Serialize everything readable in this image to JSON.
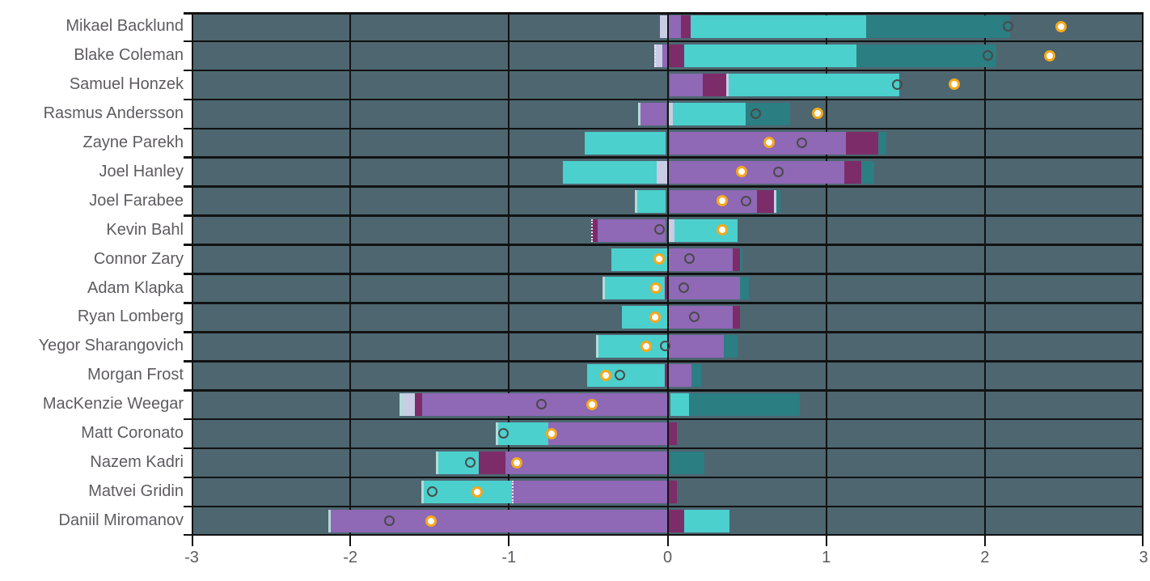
{
  "chart_data": {
    "type": "bar",
    "orientation": "horizontal-stacked",
    "title": "",
    "xlabel": "",
    "ylabel": "",
    "grid": true,
    "legend": "none",
    "x_axis": {
      "min": -3,
      "max": 3,
      "ticks": [
        -3,
        -2,
        -1,
        0,
        1,
        2,
        3
      ],
      "tick_labels": [
        "-3",
        "-2",
        "-1",
        "0",
        "1",
        "2",
        "3"
      ]
    },
    "colors": {
      "plot_background": "#4d6670",
      "gridline": "#121212",
      "label_text": "#5e5b60",
      "cyan": "#4bd0cd",
      "teal": "#2b7e82",
      "purple": "#8f68b6",
      "magenta": "#7d2c6a",
      "lavender": "#c9cce4",
      "ice": "#b7d9d8",
      "open_circle_stroke": "#4a4a4a",
      "filled_circle_ring": "#f6a81c",
      "filled_circle_fill": "#ffffff"
    },
    "marker_legend": {
      "open_circle": "open-gray-circle-marker",
      "filled_circle": "yellow-ring-white-circle-marker"
    },
    "rows": [
      {
        "name": "Mikael Backlund",
        "segments": [
          {
            "c": "lavender",
            "from": -0.05,
            "to": 0
          },
          {
            "c": "purple",
            "from": 0,
            "to": 0.085
          },
          {
            "c": "magenta",
            "from": 0.085,
            "to": 0.145
          },
          {
            "c": "cyan",
            "from": 0.145,
            "to": 1.25
          },
          {
            "c": "teal",
            "from": 1.25,
            "to": 2.16
          }
        ],
        "open_circle": 2.15,
        "filled_circle": 2.48
      },
      {
        "name": "Blake Coleman",
        "segments": [
          {
            "c": "lavender",
            "from": -0.085,
            "to": -0.035,
            "dashed": true
          },
          {
            "c": "purple",
            "from": -0.035,
            "to": 0
          },
          {
            "c": "magenta",
            "from": 0,
            "to": 0.105
          },
          {
            "c": "cyan",
            "from": 0.105,
            "to": 1.19
          },
          {
            "c": "teal",
            "from": 1.19,
            "to": 2.07
          }
        ],
        "open_circle": 2.02,
        "filled_circle": 2.41
      },
      {
        "name": "Samuel Honzek",
        "segments": [
          {
            "c": "purple",
            "from": 0.015,
            "to": 0.22
          },
          {
            "c": "magenta",
            "from": 0.22,
            "to": 0.37
          },
          {
            "c": "lavender",
            "from": 0.37,
            "to": 0.385
          },
          {
            "c": "cyan",
            "from": 0.385,
            "to": 1.46
          }
        ],
        "open_circle": 1.45,
        "filled_circle": 1.81
      },
      {
        "name": "Rasmus Andersson",
        "segments": [
          {
            "c": "ice",
            "from": -0.185,
            "to": -0.17
          },
          {
            "c": "purple",
            "from": -0.17,
            "to": -0.01
          },
          {
            "c": "lavender",
            "from": 0.01,
            "to": 0.035
          },
          {
            "c": "cyan",
            "from": 0.035,
            "to": 0.49
          },
          {
            "c": "teal",
            "from": 0.49,
            "to": 0.77
          }
        ],
        "open_circle": 0.56,
        "filled_circle": 0.95
      },
      {
        "name": "Zayne Parekh",
        "segments": [
          {
            "c": "cyan",
            "from": -0.52,
            "to": -0.015
          },
          {
            "c": "purple",
            "from": 0.015,
            "to": 1.125
          },
          {
            "c": "magenta",
            "from": 1.125,
            "to": 1.33
          },
          {
            "c": "teal",
            "from": 1.33,
            "to": 1.38
          }
        ],
        "open_circle": 0.85,
        "filled_circle": 0.64
      },
      {
        "name": "Joel Hanley",
        "segments": [
          {
            "c": "cyan",
            "from": -0.66,
            "to": -0.07
          },
          {
            "c": "lavender",
            "from": -0.07,
            "to": 0
          },
          {
            "c": "purple",
            "from": 0.01,
            "to": 1.115
          },
          {
            "c": "magenta",
            "from": 1.115,
            "to": 1.22
          },
          {
            "c": "teal",
            "from": 1.22,
            "to": 1.3
          }
        ],
        "open_circle": 0.7,
        "filled_circle": 0.47
      },
      {
        "name": "Joel Farabee",
        "segments": [
          {
            "c": "ice",
            "from": -0.205,
            "to": -0.19
          },
          {
            "c": "cyan",
            "from": -0.19,
            "to": -0.015
          },
          {
            "c": "purple",
            "from": 0.015,
            "to": 0.565
          },
          {
            "c": "magenta",
            "from": 0.565,
            "to": 0.67
          },
          {
            "c": "lavender",
            "from": 0.67,
            "to": 0.685
          },
          {
            "c": "teal",
            "from": 0.685,
            "to": 0.71
          }
        ],
        "open_circle": 0.495,
        "filled_circle": 0.345
      },
      {
        "name": "Kevin Bahl",
        "segments": [
          {
            "c": "magenta",
            "from": -0.48,
            "to": -0.44,
            "dashed": true
          },
          {
            "c": "purple",
            "from": -0.44,
            "to": -0.015
          },
          {
            "c": "lavender",
            "from": 0.005,
            "to": 0.045
          },
          {
            "c": "cyan",
            "from": 0.045,
            "to": 0.44
          }
        ],
        "open_circle": -0.05,
        "filled_circle": 0.345
      },
      {
        "name": "Connor Zary",
        "segments": [
          {
            "c": "cyan",
            "from": -0.355,
            "to": -0.005
          },
          {
            "c": "purple",
            "from": 0.01,
            "to": 0.41
          },
          {
            "c": "magenta",
            "from": 0.41,
            "to": 0.455
          },
          {
            "c": "teal",
            "from": 0.455,
            "to": 0.47
          }
        ],
        "open_circle": 0.14,
        "filled_circle": -0.05
      },
      {
        "name": "Adam Klapka",
        "segments": [
          {
            "c": "ice",
            "from": -0.41,
            "to": -0.395
          },
          {
            "c": "cyan",
            "from": -0.395,
            "to": -0.02
          },
          {
            "c": "magenta",
            "from": -0.02,
            "to": 0
          },
          {
            "c": "purple",
            "from": 0,
            "to": 0.455
          },
          {
            "c": "teal",
            "from": 0.455,
            "to": 0.51
          }
        ],
        "open_circle": 0.105,
        "filled_circle": -0.07
      },
      {
        "name": "Ryan Lomberg",
        "segments": [
          {
            "c": "cyan",
            "from": -0.29,
            "to": -0.005
          },
          {
            "c": "purple",
            "from": 0.01,
            "to": 0.41
          },
          {
            "c": "magenta",
            "from": 0.41,
            "to": 0.455
          }
        ],
        "open_circle": 0.17,
        "filled_circle": -0.075
      },
      {
        "name": "Yegor Sharangovich",
        "segments": [
          {
            "c": "ice",
            "from": -0.45,
            "to": -0.435
          },
          {
            "c": "cyan",
            "from": -0.435,
            "to": -0.005
          },
          {
            "c": "purple",
            "from": 0.01,
            "to": 0.355
          },
          {
            "c": "teal",
            "from": 0.355,
            "to": 0.44
          }
        ],
        "open_circle": -0.01,
        "filled_circle": -0.135
      },
      {
        "name": "Morgan Frost",
        "segments": [
          {
            "c": "cyan",
            "from": -0.505,
            "to": -0.02
          },
          {
            "c": "magenta",
            "from": -0.02,
            "to": 0
          },
          {
            "c": "purple",
            "from": 0.005,
            "to": 0.15
          },
          {
            "c": "teal",
            "from": 0.15,
            "to": 0.21
          }
        ],
        "open_circle": -0.3,
        "filled_circle": -0.39
      },
      {
        "name": "MacKenzie Weegar",
        "segments": [
          {
            "c": "ice",
            "from": -1.69,
            "to": -1.665
          },
          {
            "c": "lavender",
            "from": -1.665,
            "to": -1.595
          },
          {
            "c": "magenta",
            "from": -1.595,
            "to": -1.545
          },
          {
            "c": "purple",
            "from": -1.545,
            "to": -0.005
          },
          {
            "c": "cyan",
            "from": 0.02,
            "to": 0.135
          },
          {
            "c": "teal",
            "from": 0.135,
            "to": 0.835
          }
        ],
        "open_circle": -0.79,
        "filled_circle": -0.475
      },
      {
        "name": "Matt Coronato",
        "segments": [
          {
            "c": "ice",
            "from": -1.085,
            "to": -1.07
          },
          {
            "c": "cyan",
            "from": -1.07,
            "to": -0.75
          },
          {
            "c": "purple",
            "from": -0.75,
            "to": 0.005
          },
          {
            "c": "magenta",
            "from": 0.01,
            "to": 0.06
          }
        ],
        "open_circle": -1.03,
        "filled_circle": -0.73
      },
      {
        "name": "Nazem Kadri",
        "segments": [
          {
            "c": "ice",
            "from": -1.46,
            "to": -1.445
          },
          {
            "c": "cyan",
            "from": -1.445,
            "to": -1.19
          },
          {
            "c": "magenta",
            "from": -1.19,
            "to": -1.02
          },
          {
            "c": "purple",
            "from": -1.02,
            "to": 0
          },
          {
            "c": "teal",
            "from": 0.02,
            "to": 0.23
          }
        ],
        "open_circle": -1.24,
        "filled_circle": -0.95
      },
      {
        "name": "Matvei Gridin",
        "segments": [
          {
            "c": "ice",
            "from": -1.55,
            "to": -1.535
          },
          {
            "c": "cyan",
            "from": -1.535,
            "to": -0.98
          },
          {
            "c": "purple",
            "from": -0.98,
            "to": 0,
            "dashed": true
          },
          {
            "c": "magenta",
            "from": 0.01,
            "to": 0.06
          }
        ],
        "open_circle": -1.48,
        "filled_circle": -1.2
      },
      {
        "name": "Daniil Miromanov",
        "segments": [
          {
            "c": "ice",
            "from": -2.14,
            "to": -2.125
          },
          {
            "c": "purple",
            "from": -2.125,
            "to": 0
          },
          {
            "c": "magenta",
            "from": 0.01,
            "to": 0.105
          },
          {
            "c": "cyan",
            "from": 0.105,
            "to": 0.39
          }
        ],
        "open_circle": -1.75,
        "filled_circle": -1.49
      }
    ]
  }
}
